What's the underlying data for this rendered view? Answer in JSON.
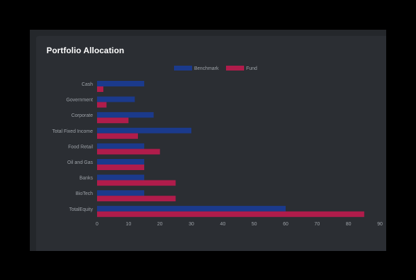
{
  "card": {
    "title": "Portfolio Allocation"
  },
  "colors": {
    "benchmark": "#1b3a8c",
    "fund": "#b01c4b",
    "grid": "#3a3d42",
    "text": "#9ea3a9"
  },
  "chart_data": {
    "type": "bar",
    "orientation": "horizontal",
    "categories": [
      "Cash",
      "Government",
      "Corporate",
      "Total Fixed Income",
      "Food Retail",
      "Oil and Gas",
      "Banks",
      "BioTech",
      "TotalEquity"
    ],
    "series": [
      {
        "name": "Benchmark",
        "values": [
          15,
          12,
          18,
          30,
          15,
          15,
          15,
          15,
          60
        ]
      },
      {
        "name": "Fund",
        "values": [
          2,
          3,
          10,
          13,
          20,
          15,
          25,
          25,
          85
        ]
      }
    ],
    "xlim": [
      0,
      90
    ],
    "xticks": [
      0,
      10,
      20,
      30,
      40,
      50,
      60,
      70,
      80,
      90
    ],
    "legend_position": "top",
    "grid": false
  }
}
